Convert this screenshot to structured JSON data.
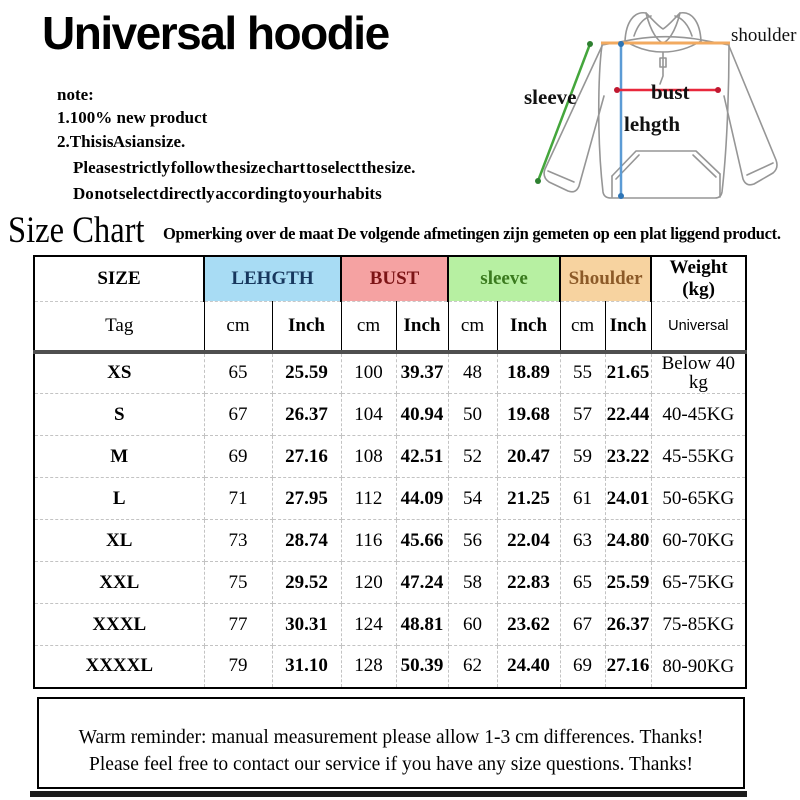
{
  "title": "Universal hoodie",
  "notes": {
    "label": "note:",
    "lines": [
      "1.100% new product",
      "2.This is Asian size.",
      "Please strictly follow the size chart to select the size.",
      "Do not select directly according to your habits"
    ]
  },
  "diagram": {
    "labels": {
      "shoulder": "shoulder",
      "sleeve": "sleeve",
      "bust": "bust",
      "length": "lehgth"
    },
    "line_colors": {
      "shoulder": "#f2aa60",
      "sleeve": "#44a63c",
      "bust": "#e8283c",
      "length": "#5b9bd5"
    }
  },
  "size_chart": {
    "heading": "Size Chart",
    "subtitle": "Opmerking over de maat De volgende afmetingen zijn gemeten  op een plat liggend product."
  },
  "table": {
    "groups": [
      {
        "label": "SIZE",
        "bg": "#ffffff",
        "color": "#000000",
        "span": 1
      },
      {
        "label": "LEHGTH",
        "bg": "#a8dcf4",
        "color": "#17375d",
        "span": 2
      },
      {
        "label": "BUST",
        "bg": "#f5a2a2",
        "color": "#7c1416",
        "span": 2
      },
      {
        "label": "sleeve",
        "bg": "#b7f0a2",
        "color": "#3a7a1e",
        "span": 2
      },
      {
        "label": "Shoulder",
        "bg": "#f7d3a0",
        "color": "#8c5a28",
        "span": 2
      },
      {
        "label": "Weight (kg)",
        "bg": "#ffffff",
        "color": "#000000",
        "span": 1
      }
    ],
    "tag_row": [
      "Tag",
      "cm",
      "Inch",
      "cm",
      "Inch",
      "cm",
      "Inch",
      "cm",
      "Inch",
      "Universal"
    ],
    "rows": [
      [
        "XS",
        "65",
        "25.59",
        "100",
        "39.37",
        "48",
        "18.89",
        "55",
        "21.65",
        "Below 40 kg"
      ],
      [
        "S",
        "67",
        "26.37",
        "104",
        "40.94",
        "50",
        "19.68",
        "57",
        "22.44",
        "40-45KG"
      ],
      [
        "M",
        "69",
        "27.16",
        "108",
        "42.51",
        "52",
        "20.47",
        "59",
        "23.22",
        "45-55KG"
      ],
      [
        "L",
        "71",
        "27.95",
        "112",
        "44.09",
        "54",
        "21.25",
        "61",
        "24.01",
        "50-65KG"
      ],
      [
        "XL",
        "73",
        "28.74",
        "116",
        "45.66",
        "56",
        "22.04",
        "63",
        "24.80",
        "60-70KG"
      ],
      [
        "XXL",
        "75",
        "29.52",
        "120",
        "47.24",
        "58",
        "22.83",
        "65",
        "25.59",
        "65-75KG"
      ],
      [
        "XXXL",
        "77",
        "30.31",
        "124",
        "48.81",
        "60",
        "23.62",
        "67",
        "26.37",
        "75-85KG"
      ],
      [
        "XXXXL",
        "79",
        "31.10",
        "128",
        "50.39",
        "62",
        "24.40",
        "69",
        "27.16",
        "80-90KG"
      ]
    ]
  },
  "reminder": {
    "line1": "Warm reminder: manual measurement please allow 1-3 cm differences. Thanks!",
    "line2": "Please feel free to contact our service if you have any size questions. Thanks!"
  }
}
